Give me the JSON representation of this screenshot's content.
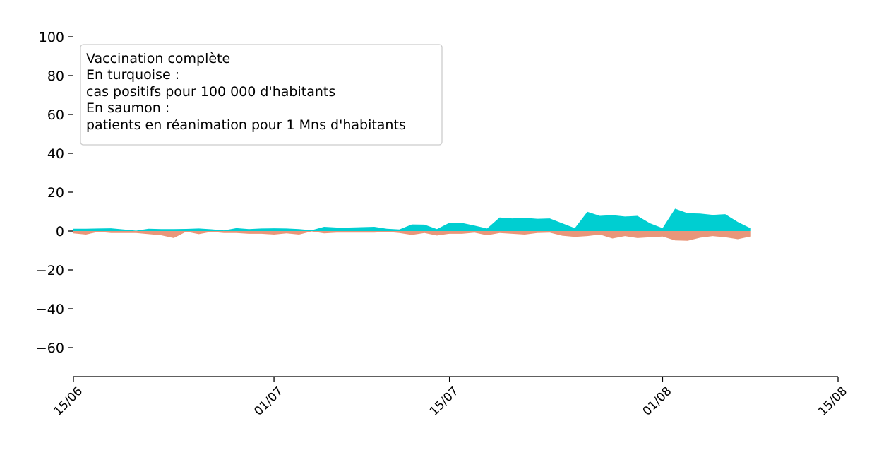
{
  "chart_data": {
    "type": "area",
    "annotation": {
      "lines": [
        "Vaccination complète",
        "En turquoise :",
        "cas positifs pour 100 000 d'habitants",
        "En saumon :",
        "patients en réanimation pour 1 Mns d'habitants"
      ]
    },
    "x_ticks": [
      "15/06",
      "01/07",
      "15/07",
      "01/08",
      "15/08"
    ],
    "x_tick_dates": [
      "2021-06-15",
      "2021-07-01",
      "2021-07-15",
      "2021-08-01",
      "2021-08-15"
    ],
    "xlim": [
      "2021-06-15",
      "2021-08-15"
    ],
    "y_ticks": [
      100,
      80,
      60,
      40,
      20,
      0,
      -20,
      -40,
      -60
    ],
    "y_tick_labels": [
      "100",
      "80",
      "60",
      "40",
      "20",
      "0",
      "−20",
      "−40",
      "−60"
    ],
    "ylim": [
      -75,
      100
    ],
    "grid": false,
    "series": [
      {
        "color": "#00ced1",
        "x": [
          "2021-06-15",
          "2021-06-16",
          "2021-06-17",
          "2021-06-18",
          "2021-06-19",
          "2021-06-20",
          "2021-06-21",
          "2021-06-22",
          "2021-06-23",
          "2021-06-24",
          "2021-06-25",
          "2021-06-26",
          "2021-06-27",
          "2021-06-28",
          "2021-06-29",
          "2021-06-30",
          "2021-07-01",
          "2021-07-02",
          "2021-07-03",
          "2021-07-04",
          "2021-07-05",
          "2021-07-06",
          "2021-07-07",
          "2021-07-08",
          "2021-07-09",
          "2021-07-10",
          "2021-07-11",
          "2021-07-12",
          "2021-07-13",
          "2021-07-14",
          "2021-07-15",
          "2021-07-16",
          "2021-07-17",
          "2021-07-18",
          "2021-07-19",
          "2021-07-20",
          "2021-07-21",
          "2021-07-22",
          "2021-07-23",
          "2021-07-24",
          "2021-07-25",
          "2021-07-26",
          "2021-07-27",
          "2021-07-28",
          "2021-07-29",
          "2021-07-30",
          "2021-07-31",
          "2021-08-01",
          "2021-08-02",
          "2021-08-03",
          "2021-08-04",
          "2021-08-05",
          "2021-08-06",
          "2021-08-07",
          "2021-08-08"
        ],
        "values": [
          1.2,
          1.2,
          1.3,
          1.4,
          0.8,
          0.2,
          1.2,
          1.0,
          1.0,
          1.1,
          1.3,
          0.9,
          0.3,
          1.5,
          1.0,
          1.3,
          1.4,
          1.3,
          1.0,
          0.4,
          2.2,
          1.8,
          1.8,
          2.0,
          2.2,
          1.2,
          0.8,
          3.4,
          3.3,
          1.0,
          4.3,
          4.2,
          2.8,
          1.3,
          7.0,
          6.5,
          6.8,
          6.3,
          6.5,
          4.0,
          1.5,
          9.9,
          7.8,
          8.2,
          7.5,
          7.8,
          4.0,
          1.5,
          11.5,
          9.2,
          9.0,
          8.3,
          8.7,
          4.7,
          1.5
        ]
      },
      {
        "color": "#e9967a",
        "x": [
          "2021-06-15",
          "2021-06-16",
          "2021-06-17",
          "2021-06-18",
          "2021-06-19",
          "2021-06-20",
          "2021-06-21",
          "2021-06-22",
          "2021-06-23",
          "2021-06-24",
          "2021-06-25",
          "2021-06-26",
          "2021-06-27",
          "2021-06-28",
          "2021-06-29",
          "2021-06-30",
          "2021-07-01",
          "2021-07-02",
          "2021-07-03",
          "2021-07-04",
          "2021-07-05",
          "2021-07-06",
          "2021-07-07",
          "2021-07-08",
          "2021-07-09",
          "2021-07-10",
          "2021-07-11",
          "2021-07-12",
          "2021-07-13",
          "2021-07-14",
          "2021-07-15",
          "2021-07-16",
          "2021-07-17",
          "2021-07-18",
          "2021-07-19",
          "2021-07-20",
          "2021-07-21",
          "2021-07-22",
          "2021-07-23",
          "2021-07-24",
          "2021-07-25",
          "2021-07-26",
          "2021-07-27",
          "2021-07-28",
          "2021-07-29",
          "2021-07-30",
          "2021-07-31",
          "2021-08-01",
          "2021-08-02",
          "2021-08-03",
          "2021-08-04",
          "2021-08-05",
          "2021-08-06",
          "2021-08-07",
          "2021-08-08"
        ],
        "values": [
          -1.2,
          -1.8,
          -0.4,
          -1.0,
          -1.0,
          -1.0,
          -1.6,
          -2.2,
          -3.6,
          -0.3,
          -1.6,
          -0.4,
          -1.0,
          -1.0,
          -1.4,
          -1.4,
          -1.8,
          -1.2,
          -1.8,
          -0.2,
          -1.2,
          -0.8,
          -0.8,
          -0.8,
          -0.8,
          -0.4,
          -1.0,
          -2.0,
          -1.0,
          -2.3,
          -1.4,
          -1.4,
          -0.8,
          -2.2,
          -1.0,
          -1.4,
          -1.8,
          -1.0,
          -0.8,
          -2.4,
          -3.0,
          -2.6,
          -1.8,
          -3.8,
          -2.6,
          -3.6,
          -3.2,
          -2.8,
          -4.8,
          -5.0,
          -3.4,
          -2.6,
          -3.2,
          -4.2,
          -2.8
        ]
      }
    ]
  }
}
